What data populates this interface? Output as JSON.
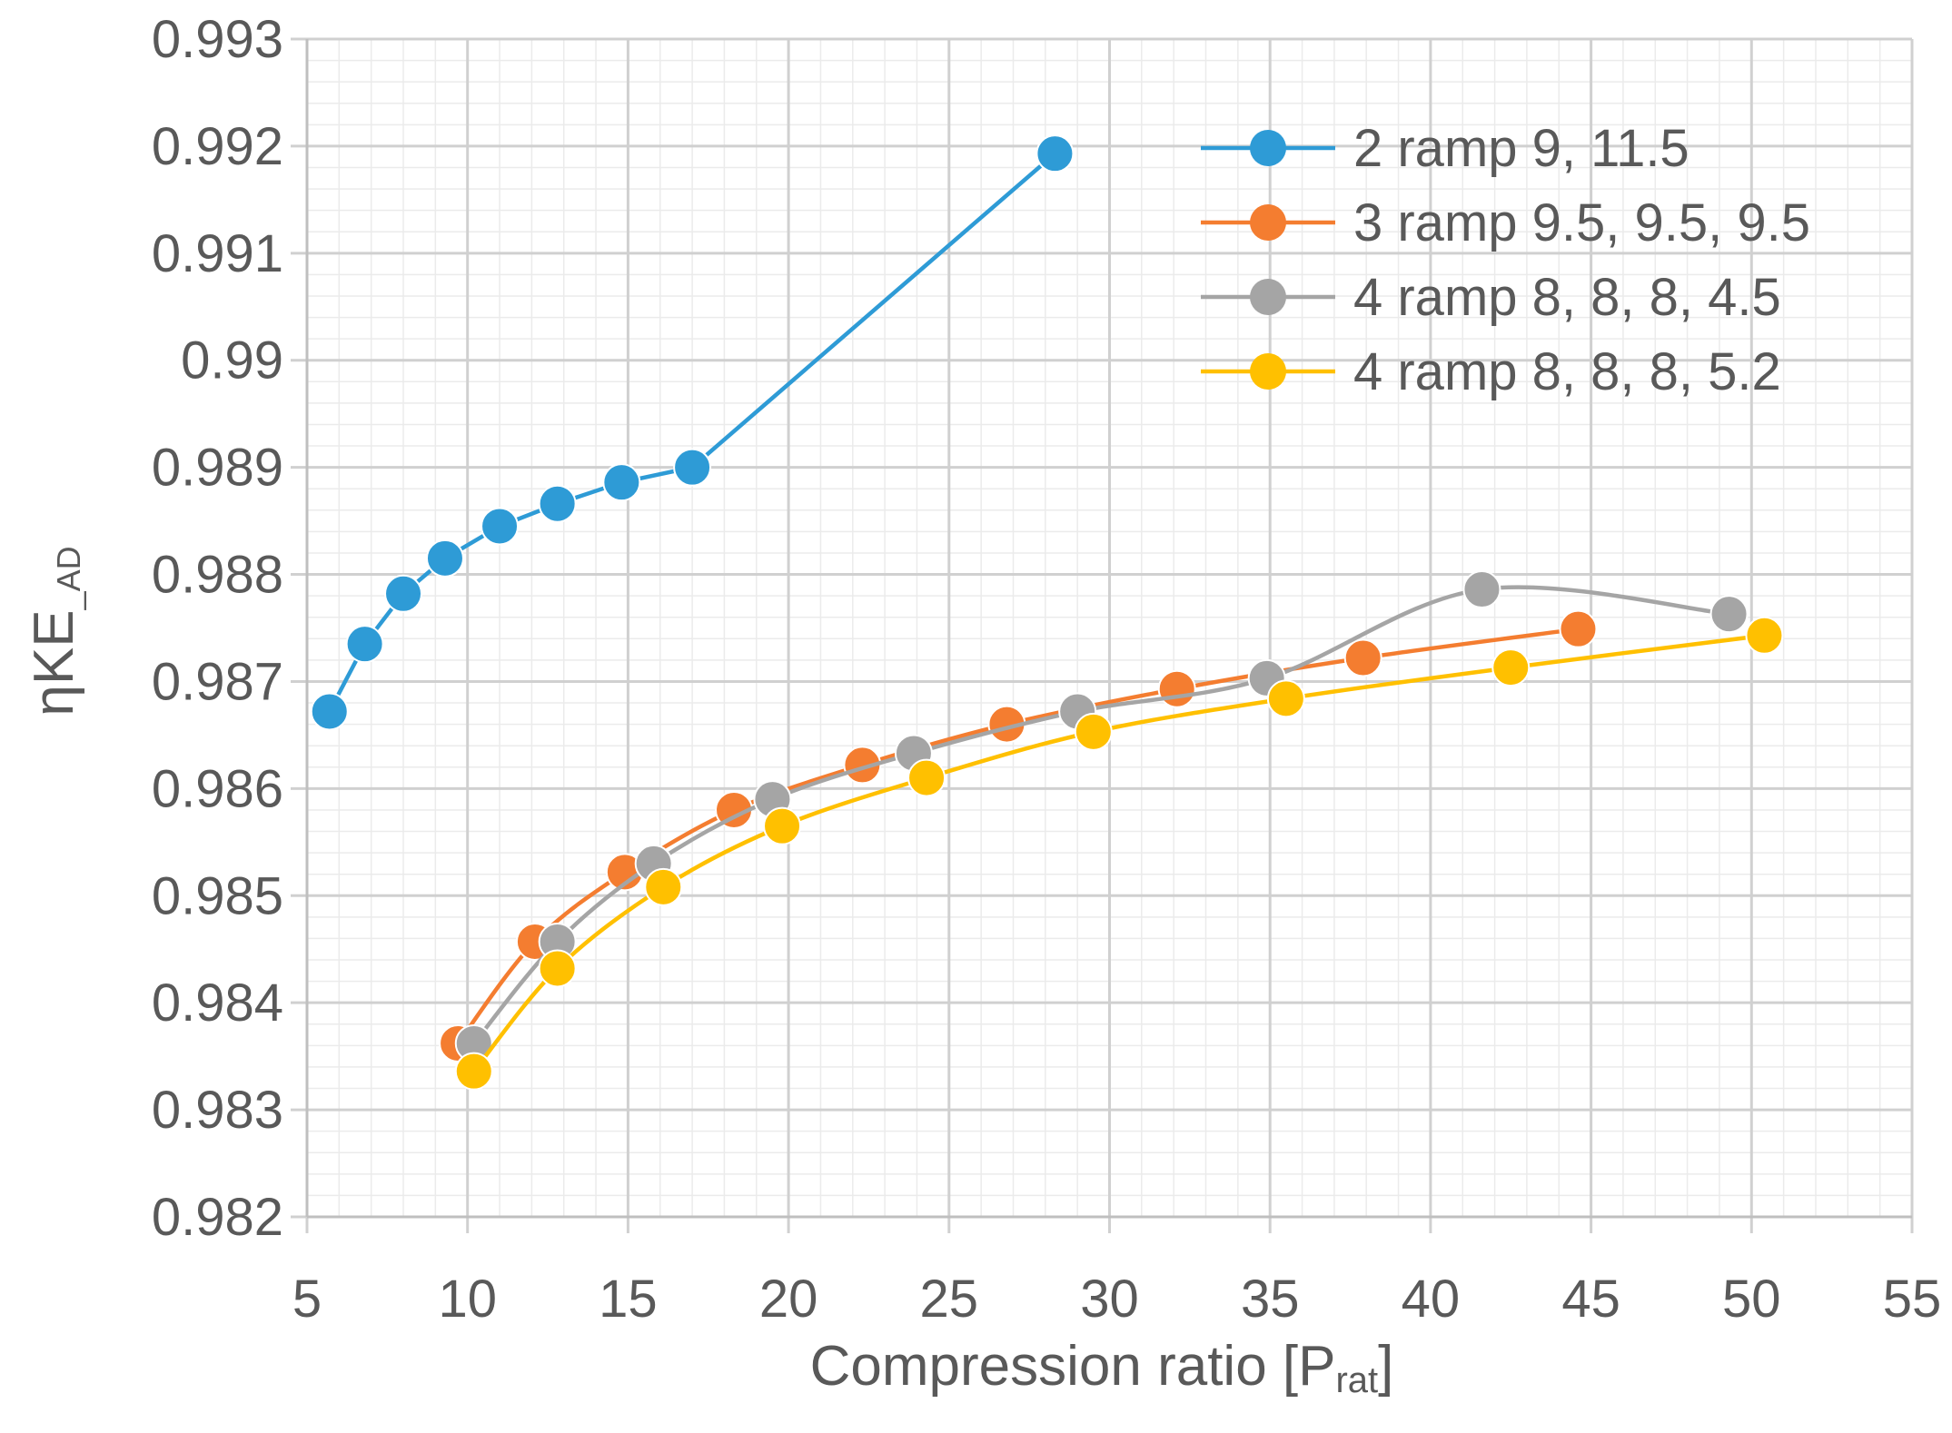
{
  "chart_data": {
    "type": "line",
    "title": "",
    "xlabel": "Compression ratio [P",
    "xlabel_sub": "rat",
    "xlabel_end": "]",
    "ylabel": "ηKE",
    "ylabel_sub": "_AD",
    "xlim": [
      5,
      55
    ],
    "ylim": [
      0.982,
      0.993
    ],
    "xticks": [
      5,
      10,
      15,
      20,
      25,
      30,
      35,
      40,
      45,
      50,
      55
    ],
    "yticks": [
      0.982,
      0.983,
      0.984,
      0.985,
      0.986,
      0.987,
      0.988,
      0.989,
      0.99,
      0.991,
      0.992,
      0.993
    ],
    "xtick_labels": [
      "5",
      "10",
      "15",
      "20",
      "25",
      "30",
      "35",
      "40",
      "45",
      "50",
      "55"
    ],
    "ytick_labels": [
      "0.982",
      "0.983",
      "0.984",
      "0.985",
      "0.986",
      "0.987",
      "0.988",
      "0.989",
      "0.99",
      "0.991",
      "0.992",
      "0.993"
    ],
    "grid": true,
    "legend_position": "top-right",
    "series": [
      {
        "name": "2 ramp 9, 11.5",
        "color": "#2E9BD6",
        "smooth": false,
        "x": [
          5.7,
          6.8,
          8.0,
          9.3,
          11.0,
          12.8,
          14.8,
          17.0,
          28.3
        ],
        "y": [
          0.98672,
          0.98735,
          0.98782,
          0.98815,
          0.98845,
          0.98866,
          0.98886,
          0.989,
          0.99193
        ]
      },
      {
        "name": "3 ramp 9.5, 9.5, 9.5",
        "color": "#F47D30",
        "smooth": true,
        "x": [
          9.7,
          12.1,
          14.9,
          18.3,
          22.3,
          26.8,
          32.1,
          37.9,
          44.6
        ],
        "y": [
          0.98362,
          0.98457,
          0.98522,
          0.9858,
          0.98622,
          0.9866,
          0.98693,
          0.98722,
          0.98749
        ]
      },
      {
        "name": "4 ramp 8, 8, 8, 4.5",
        "color": "#A5A5A5",
        "smooth": true,
        "x": [
          10.2,
          12.8,
          15.8,
          19.5,
          23.9,
          29.0,
          34.9,
          41.6,
          49.3
        ],
        "y": [
          0.98362,
          0.98457,
          0.9853,
          0.9859,
          0.98633,
          0.98672,
          0.98703,
          0.98786,
          0.98763
        ]
      },
      {
        "name": "4 ramp 8, 8, 8, 5.2",
        "color": "#FFC000",
        "smooth": true,
        "x": [
          10.2,
          12.8,
          16.1,
          19.8,
          24.3,
          29.5,
          35.5,
          42.5,
          50.4
        ],
        "y": [
          0.98336,
          0.98432,
          0.98508,
          0.98565,
          0.9861,
          0.98653,
          0.98684,
          0.98713,
          0.98743
        ]
      }
    ]
  }
}
